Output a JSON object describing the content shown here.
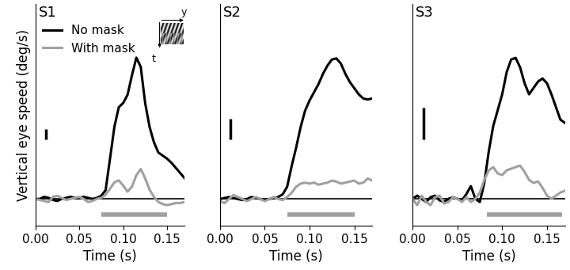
{
  "chart_data": [
    {
      "type": "line",
      "title": "S1",
      "y_label": "Vertical eye speed (deg/s)",
      "legend": "upper left",
      "tick_labels": "x",
      "grid": false,
      "inset_axis_labels": [
        "y",
        "t"
      ],
      "x": [
        0.0,
        0.005,
        0.01,
        0.015,
        0.02,
        0.025,
        0.03,
        0.035,
        0.04,
        0.045,
        0.05,
        0.055,
        0.06,
        0.065,
        0.07,
        0.075,
        0.08,
        0.085,
        0.09,
        0.095,
        0.1,
        0.105,
        0.11,
        0.115,
        0.12,
        0.125,
        0.13,
        0.135,
        0.14,
        0.145,
        0.15,
        0.155,
        0.16,
        0.165,
        0.17
      ],
      "series": [
        {
          "name": "No mask",
          "color": "#000000",
          "values": [
            0,
            0,
            0.2,
            0.1,
            -0.1,
            -0.2,
            0,
            0.1,
            0.2,
            0.1,
            0.1,
            0.2,
            0.1,
            0,
            0.1,
            0.3,
            0.85,
            3.9,
            7.0,
            8.9,
            9.3,
            10.1,
            12.0,
            13.7,
            12.8,
            9.3,
            7.0,
            5.5,
            4.5,
            4.2,
            3.9,
            3.5,
            3.0,
            2.5,
            2.0
          ]
        },
        {
          "name": "With mask",
          "color": "#a0a0a0",
          "values": [
            0,
            -0.1,
            -0.2,
            -0.3,
            0.2,
            0.3,
            0.1,
            -0.1,
            0,
            0.1,
            0.2,
            0,
            -0.3,
            -0.2,
            0,
            0.1,
            0.4,
            1.0,
            1.6,
            1.8,
            1.3,
            0.7,
            1.2,
            2.3,
            2.9,
            2.0,
            0.9,
            0.2,
            -0.3,
            -0.5,
            -0.6,
            -0.5,
            -0.4,
            -0.4,
            -0.3
          ]
        }
      ],
      "reference_line": 0,
      "window": [
        0.075,
        0.15
      ],
      "scale_bar": 1,
      "xlim": [
        0,
        0.17
      ],
      "ylim": [
        -2.6,
        18.9
      ],
      "xticks": [
        {
          "value": 0,
          "label": "0.00"
        },
        {
          "value": 0.05,
          "label": "0.05"
        },
        {
          "value": 0.1,
          "label": "0.10"
        },
        {
          "value": 0.15,
          "label": "0.15"
        }
      ],
      "x_label": "Time (s)"
    },
    {
      "type": "line",
      "title": "S2",
      "tick_labels": "x",
      "grid": false,
      "x": [
        0.0,
        0.005,
        0.01,
        0.015,
        0.02,
        0.025,
        0.03,
        0.035,
        0.04,
        0.045,
        0.05,
        0.055,
        0.06,
        0.065,
        0.07,
        0.075,
        0.08,
        0.085,
        0.09,
        0.095,
        0.1,
        0.105,
        0.11,
        0.115,
        0.12,
        0.125,
        0.13,
        0.135,
        0.14,
        0.145,
        0.15,
        0.155,
        0.16,
        0.165,
        0.17
      ],
      "series": [
        {
          "name": "No mask",
          "color": "#000000",
          "values": [
            0,
            0.05,
            0.1,
            0.05,
            0,
            -0.05,
            0,
            0.1,
            0.05,
            0,
            -0.05,
            0,
            0.05,
            0.1,
            0.23,
            0.6,
            1.6,
            2.5,
            3.5,
            4.3,
            4.8,
            5.2,
            5.6,
            6.1,
            6.5,
            6.8,
            6.85,
            6.6,
            6.1,
            5.7,
            5.4,
            5.1,
            4.9,
            4.85,
            4.9
          ]
        },
        {
          "name": "With mask",
          "color": "#a0a0a0",
          "values": [
            -0.1,
            -0.2,
            0,
            0.2,
            0.1,
            0,
            -0.1,
            0,
            0.1,
            0,
            -0.1,
            0,
            0.1,
            0,
            -0.05,
            0.1,
            0.3,
            0.6,
            0.75,
            0.8,
            0.75,
            0.8,
            0.7,
            0.75,
            0.8,
            0.9,
            0.85,
            0.75,
            0.8,
            0.85,
            0.9,
            0.75,
            0.8,
            1.0,
            0.9
          ]
        }
      ],
      "reference_line": 0,
      "window": [
        0.075,
        0.15
      ],
      "scale_bar": 1,
      "xlim": [
        0,
        0.17
      ],
      "ylim": [
        -1.3,
        9.5
      ],
      "xticks": [
        {
          "value": 0,
          "label": "0.00"
        },
        {
          "value": 0.05,
          "label": "0.05"
        },
        {
          "value": 0.1,
          "label": "0.10"
        },
        {
          "value": 0.15,
          "label": "0.15"
        }
      ],
      "x_label": "Time (s)"
    },
    {
      "type": "line",
      "title": "S3",
      "tick_labels": "x",
      "grid": false,
      "x": [
        0.0,
        0.005,
        0.01,
        0.015,
        0.02,
        0.025,
        0.03,
        0.035,
        0.04,
        0.045,
        0.05,
        0.055,
        0.06,
        0.065,
        0.07,
        0.075,
        0.08,
        0.085,
        0.09,
        0.095,
        0.1,
        0.105,
        0.11,
        0.115,
        0.12,
        0.125,
        0.13,
        0.135,
        0.14,
        0.145,
        0.15,
        0.155,
        0.16,
        0.165,
        0.17
      ],
      "series": [
        {
          "name": "No mask",
          "color": "#000000",
          "values": [
            0,
            0.1,
            0,
            -0.1,
            0.05,
            0.1,
            -0.05,
            -0.1,
            0,
            0.05,
            0,
            -0.05,
            0.15,
            0.4,
            0,
            -0.1,
            0.5,
            1.5,
            2.3,
            2.8,
            3.3,
            4.0,
            4.4,
            4.45,
            4.15,
            3.65,
            3.3,
            3.5,
            3.7,
            3.8,
            3.65,
            3.3,
            2.9,
            2.5,
            2.4
          ]
        },
        {
          "name": "With mask",
          "color": "#a0a0a0",
          "values": [
            0,
            -0.2,
            0.1,
            -0.1,
            -0.2,
            0.05,
            0.1,
            -0.15,
            -0.1,
            0.05,
            0,
            -0.1,
            0.05,
            -0.1,
            0,
            0.2,
            0.6,
            0.9,
            1.0,
            0.8,
            0.75,
            0.9,
            0.95,
            1.0,
            1.05,
            0.85,
            0.6,
            0.5,
            0.55,
            0.35,
            0.1,
            0.0,
            0.1,
            0.2,
            0.25
          ]
        }
      ],
      "reference_line": 0,
      "window": [
        0.083,
        0.167
      ],
      "scale_bar": 1,
      "xlim": [
        0,
        0.17
      ],
      "ylim": [
        -0.85,
        6.15
      ],
      "xticks": [
        {
          "value": 0,
          "label": "0.00"
        },
        {
          "value": 0.05,
          "label": "0.05"
        },
        {
          "value": 0.1,
          "label": "0.10"
        },
        {
          "value": 0.15,
          "label": "0.15"
        }
      ],
      "x_label": "Time (s)"
    }
  ]
}
